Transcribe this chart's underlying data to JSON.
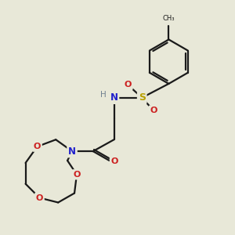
{
  "background_color": "#e8e8d8",
  "bond_color": "#1a1a1a",
  "N_color": "#2020cc",
  "O_color": "#cc2020",
  "S_color": "#b8a000",
  "H_color": "#708090",
  "figsize": [
    3.0,
    3.0
  ],
  "dpi": 100,
  "xlim": [
    0,
    10
  ],
  "ylim": [
    0,
    10
  ]
}
